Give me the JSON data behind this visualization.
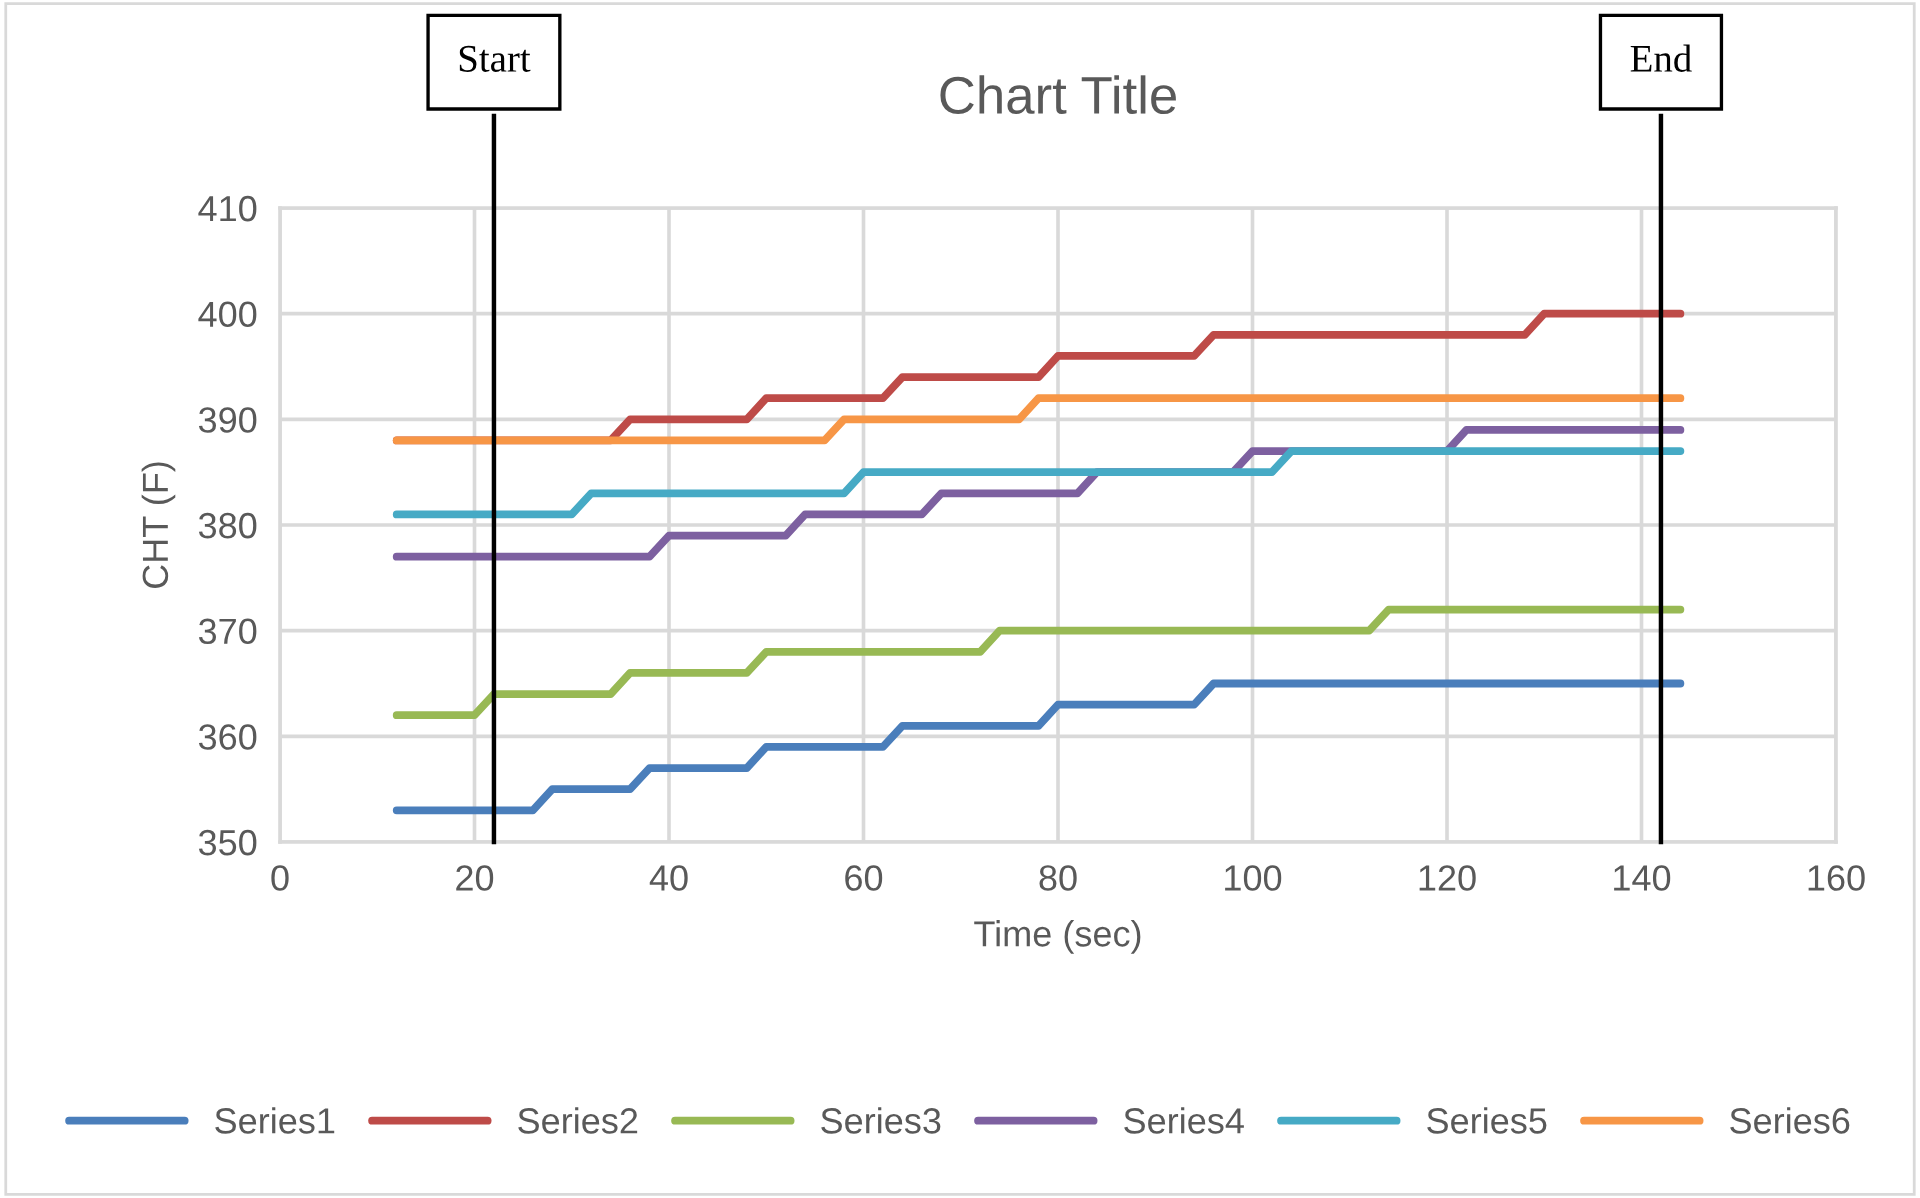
{
  "chart_data": {
    "type": "line",
    "title": "Chart Title",
    "xlabel": "Time (sec)",
    "ylabel": "CHT (F)",
    "xlim": [
      0,
      160
    ],
    "xticks": [
      0,
      20,
      40,
      60,
      80,
      100,
      120,
      140,
      160
    ],
    "ylim": [
      350,
      410
    ],
    "yticks": [
      350,
      360,
      370,
      380,
      390,
      400,
      410
    ],
    "grid": true,
    "legend": "bottom",
    "marker": "none",
    "line_style": "solid",
    "ref_lines": [
      {
        "axis": "x",
        "value": 22,
        "label": "Start",
        "color": "#000000"
      },
      {
        "axis": "x",
        "value": 142,
        "label": "End",
        "color": "#000000"
      }
    ],
    "series": [
      {
        "name": "Series1",
        "color": "#4a7ebb",
        "x": [
          12,
          26,
          28,
          36,
          38,
          48,
          50,
          62,
          64,
          78,
          80,
          94,
          96,
          144
        ],
        "values": [
          353,
          353,
          355,
          355,
          357,
          357,
          359,
          359,
          361,
          361,
          363,
          363,
          365,
          365
        ]
      },
      {
        "name": "Series2",
        "color": "#be4b48",
        "x": [
          12,
          34,
          36,
          48,
          50,
          62,
          64,
          78,
          80,
          94,
          96,
          128,
          130,
          144
        ],
        "values": [
          388,
          388,
          390,
          390,
          392,
          392,
          394,
          394,
          396,
          396,
          398,
          398,
          400,
          400
        ]
      },
      {
        "name": "Series3",
        "color": "#98b954",
        "x": [
          12,
          20,
          22,
          34,
          36,
          48,
          50,
          72,
          74,
          112,
          114,
          144
        ],
        "values": [
          362,
          362,
          364,
          364,
          366,
          366,
          368,
          368,
          370,
          370,
          372,
          372
        ]
      },
      {
        "name": "Series4",
        "color": "#7d60a0",
        "x": [
          12,
          38,
          40,
          52,
          54,
          66,
          68,
          82,
          84,
          98,
          100,
          120,
          122,
          144
        ],
        "values": [
          377,
          377,
          379,
          379,
          381,
          381,
          383,
          383,
          385,
          385,
          387,
          387,
          389,
          389
        ]
      },
      {
        "name": "Series5",
        "color": "#46aac5",
        "x": [
          12,
          30,
          32,
          58,
          60,
          102,
          104,
          144
        ],
        "values": [
          381,
          381,
          383,
          383,
          385,
          385,
          387,
          387
        ]
      },
      {
        "name": "Series6",
        "color": "#f79646",
        "x": [
          12,
          56,
          58,
          76,
          78,
          144
        ],
        "values": [
          388,
          388,
          390,
          390,
          392,
          392
        ]
      }
    ]
  }
}
